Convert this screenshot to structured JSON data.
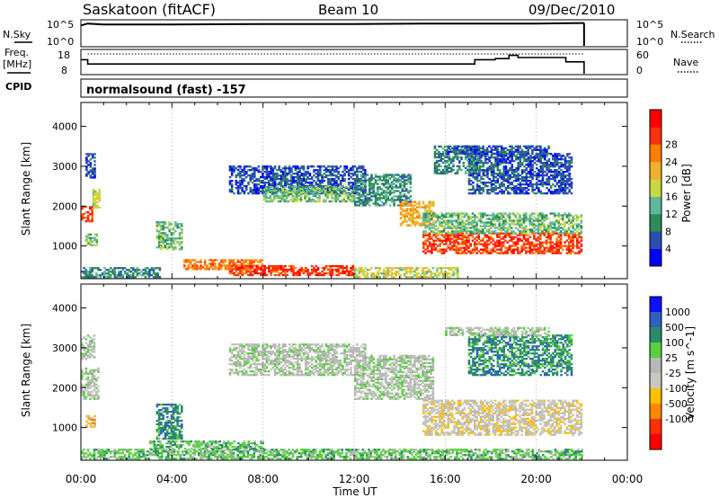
{
  "header": {
    "station": "Saskatoon (fitACF)",
    "beam": "Beam 10",
    "date": "09/Dec/2010"
  },
  "panel_labels": {
    "nsky": "N.Sky",
    "nsearch": "N.Search",
    "freq_a": "Freq.",
    "freq_b": "[MHz]",
    "nave": "Nave",
    "cpid": "CPID",
    "cpid_value": "normalsound (fast) -157",
    "nsky_ticks": [
      "10^5",
      "10^0"
    ],
    "nsearch_ticks": [
      "10^5",
      "10^0"
    ],
    "freq_ticks": [
      "18",
      "8"
    ],
    "nave_ticks": [
      "60",
      "0"
    ]
  },
  "colors": {
    "power_scale": [
      "#0000ff",
      "#2a4fb0",
      "#2e8b57",
      "#5fb89a",
      "#c8d840",
      "#f0b030",
      "#ff7f00",
      "#ff3010",
      "#ff0000"
    ],
    "velocity_scale": [
      "#1010ff",
      "#3060c0",
      "#2a8a6a",
      "#5ad040",
      "#b8b8b8",
      "#c8c8c0",
      "#ffc000",
      "#ff8800",
      "#ff3000",
      "#ff0000"
    ]
  },
  "chart_data": [
    {
      "type": "line",
      "name": "status-panels",
      "x_range_hours": [
        0,
        24
      ],
      "nsky": {
        "x": [
          0.0,
          0.3,
          1.0,
          4.0,
          8.0,
          12.0,
          15.0,
          18.0,
          20.0,
          22.1
        ],
        "y": [
          4.3,
          4.7,
          4.5,
          4.5,
          4.6,
          4.6,
          4.7,
          4.7,
          4.7,
          4.8
        ]
      },
      "freq": {
        "x": [
          0.0,
          0.3,
          17.2,
          17.3,
          18.1,
          18.2,
          18.8,
          19.2,
          21.3,
          22.1
        ],
        "y": [
          14.5,
          12.5,
          12.5,
          14.5,
          14.5,
          15.0,
          16.5,
          15.5,
          13.5,
          13.5
        ]
      },
      "nave_level": 55
    },
    {
      "type": "heatmap",
      "name": "power",
      "ylabel": "Slant Range [km]",
      "colorbar_label": "Power [dB]",
      "colorbar_ticks": [
        4,
        8,
        12,
        16,
        20,
        24,
        28
      ],
      "ylim": [
        180,
        4600
      ],
      "yticks": [
        1000,
        2000,
        3000,
        4000
      ],
      "bands": [
        {
          "t0": 0.0,
          "t1": 0.5,
          "r0": 1600,
          "r1": 2000,
          "level": 7
        },
        {
          "t0": 0.5,
          "t1": 0.8,
          "r0": 1900,
          "r1": 2400,
          "level": 4
        },
        {
          "t0": 0.2,
          "t1": 0.6,
          "r0": 2700,
          "r1": 3300,
          "level": 1
        },
        {
          "t0": 0.2,
          "t1": 0.7,
          "r0": 1000,
          "r1": 1300,
          "level": 3
        },
        {
          "t0": 0.0,
          "t1": 3.5,
          "r0": 200,
          "r1": 450,
          "level": 2
        },
        {
          "t0": 3.3,
          "t1": 4.4,
          "r0": 900,
          "r1": 1600,
          "level": 3
        },
        {
          "t0": 4.5,
          "t1": 8.0,
          "r0": 400,
          "r1": 650,
          "level": 6
        },
        {
          "t0": 6.5,
          "t1": 12.0,
          "r0": 250,
          "r1": 500,
          "level": 7
        },
        {
          "t0": 12.0,
          "t1": 16.5,
          "r0": 200,
          "r1": 450,
          "level": 4
        },
        {
          "t0": 6.5,
          "t1": 12.5,
          "r0": 2300,
          "r1": 3000,
          "level": 1
        },
        {
          "t0": 8.0,
          "t1": 12.0,
          "r0": 2100,
          "r1": 2500,
          "level": 3
        },
        {
          "t0": 12.0,
          "t1": 14.5,
          "r0": 2000,
          "r1": 2800,
          "level": 2
        },
        {
          "t0": 14.0,
          "t1": 15.5,
          "r0": 1500,
          "r1": 2100,
          "level": 5
        },
        {
          "t0": 15.0,
          "t1": 22.0,
          "r0": 800,
          "r1": 1300,
          "level": 7
        },
        {
          "t0": 15.0,
          "t1": 22.0,
          "r0": 1300,
          "r1": 1800,
          "level": 3
        },
        {
          "t0": 17.0,
          "t1": 21.5,
          "r0": 2300,
          "r1": 3300,
          "level": 1
        },
        {
          "t0": 15.5,
          "t1": 17.5,
          "r0": 2800,
          "r1": 3500,
          "level": 2
        },
        {
          "t0": 16.0,
          "t1": 20.5,
          "r0": 3300,
          "r1": 3500,
          "level": 1
        }
      ]
    },
    {
      "type": "heatmap",
      "name": "velocity",
      "ylabel": "Slant Range [km]",
      "xlabel": "Time UT",
      "colorbar_label": "Velocity [m s^-1]",
      "colorbar_ticks": [
        "1000",
        "500",
        "100",
        "25",
        "-25",
        "-100",
        "-500",
        "-1000"
      ],
      "ylim": [
        180,
        4600
      ],
      "yticks": [
        1000,
        2000,
        3000,
        4000
      ],
      "xticks": [
        "00:00",
        "04:00",
        "08:00",
        "12:00",
        "16:00",
        "20:00",
        "00:00"
      ],
      "bands": [
        {
          "t0": 0.0,
          "t1": 0.8,
          "r0": 1700,
          "r1": 2500,
          "level": 4
        },
        {
          "t0": 0.0,
          "t1": 0.6,
          "r0": 2700,
          "r1": 3300,
          "level": 4
        },
        {
          "t0": 0.2,
          "t1": 0.6,
          "r0": 1000,
          "r1": 1300,
          "level": 6
        },
        {
          "t0": 3.3,
          "t1": 4.4,
          "r0": 700,
          "r1": 1600,
          "level": 2
        },
        {
          "t0": 3.0,
          "t1": 8.0,
          "r0": 450,
          "r1": 650,
          "level": 3
        },
        {
          "t0": 0.0,
          "t1": 22.0,
          "r0": 200,
          "r1": 450,
          "level": 3
        },
        {
          "t0": 6.5,
          "t1": 12.5,
          "r0": 2300,
          "r1": 3100,
          "level": 4
        },
        {
          "t0": 12.0,
          "t1": 15.5,
          "r0": 1700,
          "r1": 2800,
          "level": 4
        },
        {
          "t0": 15.0,
          "t1": 22.0,
          "r0": 800,
          "r1": 1700,
          "level": 5
        },
        {
          "t0": 17.0,
          "t1": 21.5,
          "r0": 2300,
          "r1": 3300,
          "level": 2
        },
        {
          "t0": 16.0,
          "t1": 20.5,
          "r0": 3300,
          "r1": 3500,
          "level": 4
        }
      ]
    }
  ]
}
